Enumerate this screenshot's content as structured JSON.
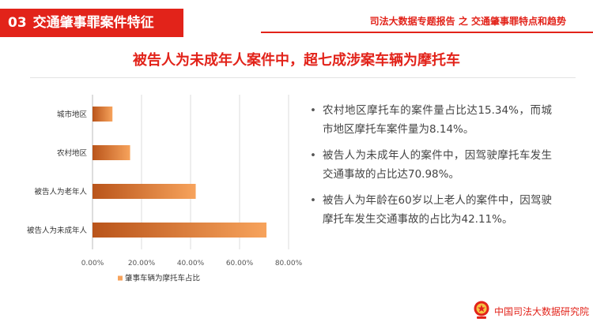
{
  "header": {
    "section_number": "03",
    "section_title": "交通肇事罪案件特征",
    "report_title": "司法大数据专题报告 之 交通肇事罪特点和趋势"
  },
  "slide": {
    "title": "被告人为未成年人案件中，超七成涉案车辆为摩托车"
  },
  "chart_data": {
    "type": "bar",
    "orientation": "horizontal",
    "categories": [
      "城市地区",
      "农村地区",
      "被告人为老年人",
      "被告人为未成年人"
    ],
    "series": [
      {
        "name": "肇事车辆为摩托车占比",
        "values": [
          8.14,
          15.34,
          42.11,
          70.98
        ]
      }
    ],
    "x_ticks": [
      "0.00%",
      "20.00%",
      "40.00%",
      "60.00%",
      "80.00%"
    ],
    "xlim": [
      0,
      80
    ],
    "grid": true,
    "legend": "bottom",
    "colors": {
      "bar_light": "#f7a35c",
      "bar_dark": "#b9541a"
    }
  },
  "bullets": [
    "农村地区摩托车的案件量占比达15.34%，而城市地区摩托车案件量为8.14%。",
    "被告人为未成年人的案件中，因驾驶摩托车发生交通事故的占比达70.98%。",
    "被告人为年龄在60岁以上老人的案件中，因驾驶摩托车发生交通事故的占比为42.11%。"
  ],
  "footer": {
    "org_name": "中国司法大数据研究院",
    "logo_icon": "court-emblem-icon"
  },
  "colors": {
    "accent": "#e2231a",
    "text": "#444444"
  }
}
